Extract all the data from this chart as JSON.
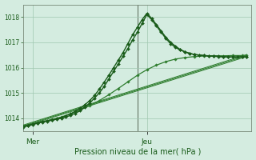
{
  "xlabel": "Pression niveau de la mer( hPa )",
  "background_color": "#d4ece0",
  "grid_color": "#a0c8b0",
  "ylim": [
    1013.5,
    1018.5
  ],
  "yticks": [
    1014,
    1015,
    1016,
    1017,
    1018
  ],
  "xlim": [
    0,
    48
  ],
  "vline_x": 24,
  "xtick_positions": [
    2,
    26
  ],
  "xtick_labels": [
    "Mer",
    "Jeu"
  ],
  "figsize": [
    3.2,
    2.0
  ],
  "dpi": 100,
  "series": [
    {
      "x": [
        0,
        1,
        2,
        3,
        4,
        5,
        6,
        7,
        8,
        9,
        10,
        11,
        12,
        13,
        14,
        15,
        16,
        17,
        18,
        19,
        20,
        21,
        22,
        23,
        24,
        25,
        26,
        27,
        28,
        29,
        30,
        31,
        32,
        33,
        34,
        35,
        36,
        37,
        38,
        39,
        40,
        41,
        42,
        43,
        44,
        45,
        46,
        47
      ],
      "y": [
        1013.65,
        1013.7,
        1013.75,
        1013.8,
        1013.85,
        1013.88,
        1013.92,
        1013.96,
        1014.0,
        1014.05,
        1014.12,
        1014.2,
        1014.3,
        1014.45,
        1014.6,
        1014.8,
        1015.0,
        1015.25,
        1015.55,
        1015.85,
        1016.15,
        1016.45,
        1016.75,
        1017.1,
        1017.4,
        1017.75,
        1018.1,
        1017.9,
        1017.65,
        1017.4,
        1017.15,
        1016.95,
        1016.8,
        1016.7,
        1016.62,
        1016.56,
        1016.52,
        1016.5,
        1016.48,
        1016.47,
        1016.46,
        1016.45,
        1016.44,
        1016.43,
        1016.43,
        1016.43,
        1016.43,
        1016.43
      ],
      "color": "#1a5c1a",
      "lw": 1.0,
      "marker": "D",
      "markersize": 2.0,
      "zorder": 5
    },
    {
      "x": [
        0,
        1,
        2,
        3,
        4,
        5,
        6,
        7,
        8,
        9,
        10,
        11,
        12,
        13,
        14,
        15,
        16,
        17,
        18,
        19,
        20,
        21,
        22,
        23,
        24,
        25,
        26,
        27,
        28,
        29,
        30,
        31,
        32,
        33,
        34,
        35,
        36,
        37,
        38,
        39,
        40,
        41,
        42,
        43,
        44,
        45,
        46,
        47
      ],
      "y": [
        1013.68,
        1013.72,
        1013.77,
        1013.82,
        1013.87,
        1013.9,
        1013.94,
        1013.98,
        1014.03,
        1014.1,
        1014.18,
        1014.28,
        1014.4,
        1014.54,
        1014.7,
        1014.9,
        1015.15,
        1015.42,
        1015.7,
        1016.0,
        1016.3,
        1016.6,
        1016.95,
        1017.3,
        1017.6,
        1017.9,
        1018.15,
        1017.95,
        1017.7,
        1017.45,
        1017.2,
        1017.0,
        1016.85,
        1016.72,
        1016.63,
        1016.57,
        1016.52,
        1016.5,
        1016.48,
        1016.46,
        1016.45,
        1016.44,
        1016.43,
        1016.42,
        1016.42,
        1016.42,
        1016.42,
        1016.42
      ],
      "color": "#1a5c1a",
      "lw": 1.0,
      "marker": "D",
      "markersize": 2.0,
      "zorder": 4
    },
    {
      "x": [
        0,
        2,
        4,
        6,
        8,
        10,
        12,
        14,
        16,
        18,
        20,
        22,
        24,
        26,
        28,
        30,
        32,
        34,
        36,
        38,
        40,
        42,
        44,
        46,
        47
      ],
      "y": [
        1013.7,
        1013.78,
        1013.86,
        1013.95,
        1014.05,
        1014.18,
        1014.33,
        1014.5,
        1014.7,
        1014.93,
        1015.18,
        1015.44,
        1015.7,
        1015.92,
        1016.1,
        1016.24,
        1016.34,
        1016.4,
        1016.44,
        1016.46,
        1016.47,
        1016.47,
        1016.48,
        1016.48,
        1016.48
      ],
      "color": "#2e7d2e",
      "lw": 0.9,
      "marker": "D",
      "markersize": 1.8,
      "zorder": 3
    },
    {
      "x": [
        0,
        47
      ],
      "y": [
        1013.73,
        1016.52
      ],
      "color": "#2e7d2e",
      "lw": 0.7,
      "marker": null,
      "markersize": 0,
      "zorder": 2
    },
    {
      "x": [
        0,
        47
      ],
      "y": [
        1013.67,
        1016.44
      ],
      "color": "#2e7d2e",
      "lw": 0.7,
      "marker": null,
      "markersize": 0,
      "zorder": 2
    },
    {
      "x": [
        0,
        47
      ],
      "y": [
        1013.7,
        1016.48
      ],
      "color": "#2e7d2e",
      "lw": 0.7,
      "marker": null,
      "markersize": 0,
      "zorder": 2
    }
  ]
}
